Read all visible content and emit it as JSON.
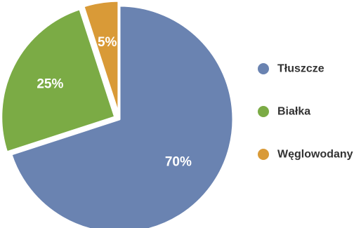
{
  "chart_data": {
    "type": "pie",
    "categories": [
      "Tłuszcze",
      "Białka",
      "Węglowodany"
    ],
    "values": [
      70,
      25,
      5
    ],
    "data_labels": [
      "70%",
      "25%",
      "5%"
    ],
    "colors": [
      "#6a83b1",
      "#7bab45",
      "#d99a37"
    ],
    "legend_position": "right",
    "exploded_slices": [
      "Białka",
      "Węglowodany"
    ]
  }
}
